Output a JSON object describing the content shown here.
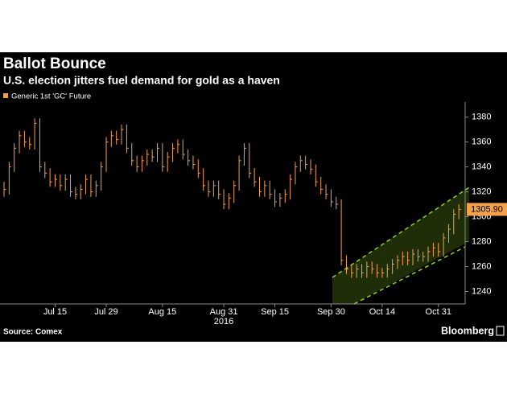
{
  "chart_data": {
    "type": "ohlc",
    "title": "Ballot Bounce",
    "subtitle": "U.S. election jitters fuel demand for gold as a haven",
    "source": "Source: Comex",
    "brand": "Bloomberg",
    "x_year_label": "2016",
    "categories": [
      null,
      null,
      null,
      null,
      null,
      null,
      null,
      null,
      null,
      null,
      "Jul 15",
      null,
      null,
      null,
      null,
      null,
      null,
      null,
      null,
      null,
      "Jul 29",
      null,
      null,
      null,
      null,
      null,
      null,
      null,
      null,
      null,
      null,
      "Aug 15",
      null,
      null,
      null,
      null,
      null,
      null,
      null,
      null,
      null,
      null,
      null,
      "Aug 31",
      null,
      null,
      null,
      null,
      null,
      null,
      null,
      null,
      null,
      "Sep 15",
      null,
      null,
      null,
      null,
      null,
      null,
      null,
      null,
      null,
      null,
      "Sep 30",
      null,
      null,
      null,
      null,
      null,
      null,
      null,
      null,
      null,
      "Oct 14",
      null,
      null,
      null,
      null,
      null,
      null,
      null,
      null,
      null,
      null,
      "Oct 31",
      null,
      null,
      null,
      null
    ],
    "series": [
      {
        "name": "Generic 1st 'GC' Future",
        "color": "#f5a04a",
        "high": [
          1328,
          1344,
          1359,
          1369,
          1369,
          1364,
          1379,
          1379,
          1344,
          1339,
          1334,
          1334,
          1334,
          1334,
          1324,
          1326,
          1334,
          1334,
          1329,
          1344,
          1364,
          1369,
          1369,
          1374,
          1374,
          1359,
          1349,
          1349,
          1354,
          1354,
          1359,
          1359,
          1352,
          1359,
          1362,
          1362,
          1354,
          1349,
          1346,
          1339,
          1329,
          1329,
          1329,
          1322,
          1319,
          1329,
          1349,
          1359,
          1359,
          1339,
          1332,
          1329,
          1329,
          1322,
          1319,
          1322,
          1334,
          1344,
          1349,
          1349,
          1346,
          1342,
          1332,
          1326,
          1322,
          1316,
          1314,
          1269,
          1262,
          1262,
          1262,
          1264,
          1264,
          1262,
          1259,
          1262,
          1266,
          1269,
          1272,
          1272,
          1274,
          1274,
          1272,
          1276,
          1279,
          1279,
          1287,
          1294,
          1306,
          1310
        ],
        "low": [
          1316,
          1318,
          1336,
          1351,
          1356,
          1354,
          1354,
          1336,
          1331,
          1324,
          1324,
          1321,
          1321,
          1316,
          1314,
          1314,
          1318,
          1316,
          1316,
          1321,
          1336,
          1356,
          1358,
          1358,
          1351,
          1341,
          1336,
          1336,
          1341,
          1344,
          1344,
          1336,
          1336,
          1344,
          1351,
          1346,
          1341,
          1338,
          1331,
          1321,
          1316,
          1316,
          1314,
          1306,
          1306,
          1311,
          1321,
          1341,
          1331,
          1324,
          1316,
          1316,
          1314,
          1308,
          1308,
          1311,
          1314,
          1326,
          1336,
          1338,
          1334,
          1324,
          1318,
          1314,
          1308,
          1306,
          1261,
          1254,
          1251,
          1251,
          1251,
          1251,
          1254,
          1251,
          1251,
          1251,
          1254,
          1258,
          1261,
          1261,
          1261,
          1264,
          1264,
          1264,
          1268,
          1268,
          1268,
          1279,
          1286,
          1298
        ],
        "close": [
          1322,
          1340,
          1355,
          1365,
          1360,
          1358,
          1375,
          1340,
          1335,
          1328,
          1330,
          1325,
          1330,
          1320,
          1318,
          1322,
          1330,
          1320,
          1325,
          1340,
          1360,
          1365,
          1362,
          1370,
          1355,
          1345,
          1340,
          1345,
          1350,
          1348,
          1355,
          1340,
          1348,
          1355,
          1358,
          1350,
          1345,
          1342,
          1335,
          1325,
          1320,
          1325,
          1318,
          1310,
          1315,
          1325,
          1345,
          1355,
          1335,
          1328,
          1320,
          1325,
          1318,
          1312,
          1315,
          1318,
          1330,
          1340,
          1345,
          1342,
          1338,
          1328,
          1322,
          1318,
          1312,
          1310,
          1265,
          1258,
          1255,
          1258,
          1255,
          1260,
          1258,
          1255,
          1255,
          1258,
          1262,
          1265,
          1268,
          1265,
          1270,
          1268,
          1268,
          1272,
          1275,
          1272,
          1283,
          1290,
          1302,
          1305.9
        ]
      }
    ],
    "last_price": {
      "value": 1305.9,
      "label": "1305.90"
    },
    "ylim": [
      1230,
      1392
    ],
    "yticks": [
      1240,
      1260,
      1280,
      1300,
      1320,
      1340,
      1360,
      1380
    ],
    "axis_color": "#8a8a8a",
    "channel_color": "#8fd12a"
  }
}
